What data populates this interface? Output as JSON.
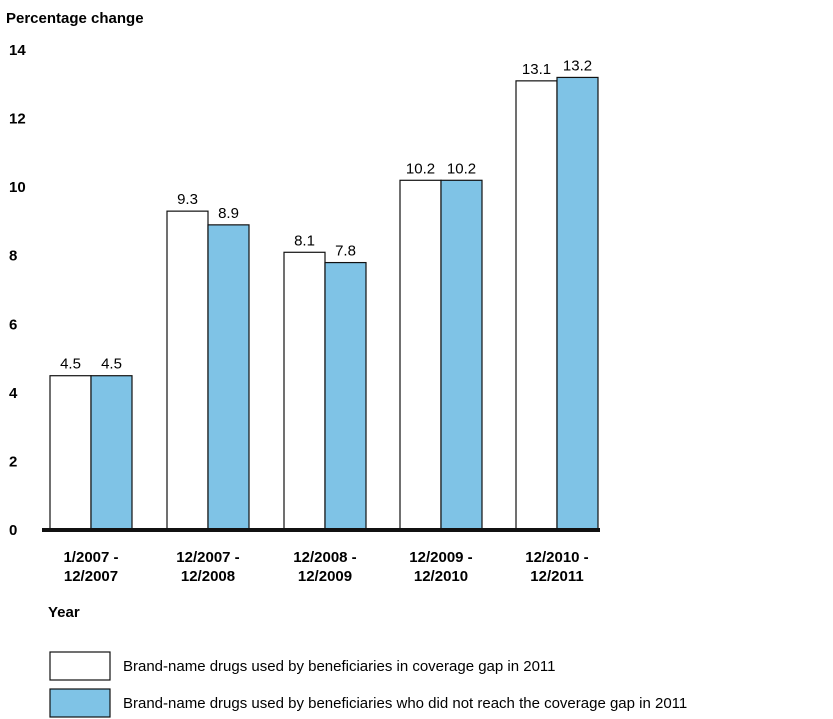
{
  "chart_data": {
    "type": "bar",
    "ylabel": "Percentage change",
    "xlabel": "Year",
    "ylim": [
      0,
      14
    ],
    "yticks": [
      0,
      2,
      4,
      6,
      8,
      10,
      12,
      14
    ],
    "categories": [
      [
        "1/2007 -",
        "12/2007"
      ],
      [
        "12/2007 -",
        "12/2008"
      ],
      [
        "12/2008 -",
        "12/2009"
      ],
      [
        "12/2009 -",
        "12/2010"
      ],
      [
        "12/2010 -",
        "12/2011"
      ]
    ],
    "series": [
      {
        "name": "Brand-name drugs used by beneficiaries in coverage gap in 2011",
        "color": "#ffffff",
        "values": [
          4.5,
          9.3,
          8.1,
          10.2,
          13.1
        ]
      },
      {
        "name": "Brand-name drugs used by beneficiaries who did not reach the coverage gap in 2011",
        "color": "#7fc3e6",
        "values": [
          4.5,
          8.9,
          7.8,
          10.2,
          13.2
        ]
      }
    ],
    "data_labels": [
      [
        "4.5",
        "9.3",
        "8.1",
        "10.2",
        "13.1"
      ],
      [
        "4.5",
        "8.9",
        "7.8",
        "10.2",
        "13.2"
      ]
    ],
    "grid": false,
    "legend_position": "bottom"
  }
}
